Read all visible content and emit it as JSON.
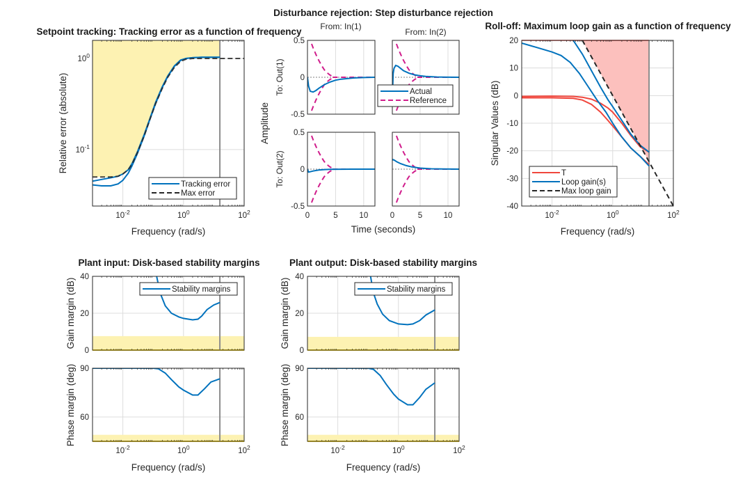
{
  "figure_title": "Disturbance rejection: Step disturbance rejection",
  "colors": {
    "blue": "#0072BD",
    "red": "#F0463C",
    "magenta": "#D01C8B",
    "dark": "#262626",
    "yellow_fill": "#FDF2B2",
    "yellow_edge": "#7F6A00",
    "red_fill": "#FCC0BD",
    "grid": "#DCDCDC",
    "vline": "#8C8C8C"
  },
  "chart_data": [
    {
      "id": "tracking",
      "type": "line",
      "title": "Setpoint tracking: Tracking error as a function of frequency",
      "xlabel": "Frequency (rad/s)",
      "ylabel": "Relative error (absolute)",
      "xscale": "log",
      "yscale": "log",
      "xlim": [
        0.001,
        100
      ],
      "ylim": [
        0.024,
        1.58
      ],
      "xticks": [
        {
          "v": 0.01,
          "base": "10",
          "exp": "-2"
        },
        {
          "v": 1,
          "base": "10",
          "exp": "0"
        },
        {
          "v": 100,
          "base": "10",
          "exp": "2"
        }
      ],
      "yticks": [
        {
          "v": 0.1,
          "base": "10",
          "exp": "-1"
        },
        {
          "v": 1,
          "base": "10",
          "exp": "0"
        }
      ],
      "grid": true,
      "shaded_region": {
        "description": "region above max error",
        "x_to": 15.8
      },
      "vline_x": 15.8,
      "series": [
        {
          "name": "Tracking error",
          "style": "solid",
          "color": "blue",
          "x": [
            0.001,
            0.002,
            0.004,
            0.007,
            0.01,
            0.015,
            0.02,
            0.03,
            0.05,
            0.08,
            0.12,
            0.2,
            0.3,
            0.5,
            0.8,
            1.2,
            2,
            4,
            8,
            15.8
          ],
          "y": [
            0.041,
            0.04,
            0.04,
            0.042,
            0.046,
            0.055,
            0.066,
            0.09,
            0.14,
            0.22,
            0.32,
            0.48,
            0.63,
            0.82,
            0.95,
            1.0,
            1.02,
            1.03,
            1.03,
            1.03
          ]
        },
        {
          "name": "Tracking error (2)",
          "style": "solid",
          "color": "blue",
          "legend": false,
          "x": [
            0.001,
            0.002,
            0.004,
            0.007,
            0.01,
            0.015,
            0.02,
            0.03,
            0.05,
            0.08,
            0.12,
            0.2,
            0.3,
            0.5,
            0.8,
            1.2,
            2,
            4,
            8,
            15.8
          ],
          "y": [
            0.045,
            0.047,
            0.049,
            0.051,
            0.054,
            0.06,
            0.07,
            0.094,
            0.145,
            0.225,
            0.33,
            0.49,
            0.64,
            0.83,
            0.96,
            1.0,
            1.02,
            1.03,
            1.03,
            1.03
          ]
        },
        {
          "name": "Max error",
          "style": "dashed",
          "color": "dark",
          "x": [
            0.001,
            0.004,
            0.007,
            0.01,
            0.015,
            0.02,
            0.03,
            0.05,
            0.08,
            0.12,
            0.2,
            0.3,
            0.5,
            0.8,
            1.2,
            2,
            4,
            10,
            100
          ],
          "y": [
            0.05,
            0.05,
            0.051,
            0.054,
            0.06,
            0.069,
            0.092,
            0.14,
            0.22,
            0.32,
            0.47,
            0.62,
            0.8,
            0.93,
            0.98,
            1.0,
            1.0,
            1.0,
            1.0
          ]
        }
      ],
      "legend": {
        "position": "bottom-right",
        "entries": [
          "Tracking error",
          "Max error"
        ]
      }
    },
    {
      "id": "disturbance",
      "type": "line",
      "title": "Disturbance rejection: Step disturbance rejection",
      "xlabel": "Time (seconds)",
      "ylabel": "Amplitude",
      "xlim": [
        0,
        12
      ],
      "ylim": [
        -0.5,
        0.5
      ],
      "xticks": [
        0,
        5,
        10
      ],
      "yticks": [
        -0.5,
        0,
        0.5
      ],
      "col_titles": [
        "From: In(1)",
        "From: In(2)"
      ],
      "row_titles": [
        "To: Out(1)",
        "To: Out(2)"
      ],
      "legend": {
        "position": "between panels",
        "entries": [
          "Actual",
          "Reference"
        ]
      },
      "reference_envelope": {
        "t": [
          0,
          0.5,
          1,
          1.5,
          2,
          2.5,
          3,
          3.5,
          4,
          4.5
        ],
        "upper": [
          0.9,
          0.5,
          0.4,
          0.31,
          0.23,
          0.16,
          0.1,
          0.06,
          0.03,
          0.01
        ]
      },
      "panels": [
        {
          "row": 0,
          "col": 0,
          "actual": {
            "t": [
              0,
              0.2,
              0.5,
              1,
              1.5,
              2,
              3,
              4,
              5,
              6,
              8,
              10,
              12
            ],
            "y": [
              0,
              -0.12,
              -0.19,
              -0.2,
              -0.18,
              -0.15,
              -0.1,
              -0.065,
              -0.04,
              -0.025,
              -0.01,
              -0.004,
              0
            ]
          }
        },
        {
          "row": 0,
          "col": 1,
          "actual": {
            "t": [
              0,
              0.15,
              0.3,
              0.6,
              1,
              1.5,
              2,
              3,
              4,
              5,
              6,
              8,
              10,
              12
            ],
            "y": [
              -0.3,
              0.05,
              0.12,
              0.16,
              0.15,
              0.12,
              0.09,
              0.055,
              0.033,
              0.02,
              0.012,
              0.004,
              0.001,
              0
            ]
          }
        },
        {
          "row": 1,
          "col": 0,
          "actual": {
            "t": [
              0,
              0.2,
              0.5,
              1,
              2,
              3,
              4,
              6,
              8,
              12
            ],
            "y": [
              0,
              -0.04,
              -0.035,
              -0.025,
              -0.012,
              -0.006,
              -0.003,
              -0.001,
              0,
              0
            ]
          }
        },
        {
          "row": 1,
          "col": 1,
          "actual": {
            "t": [
              0,
              0.1,
              0.4,
              0.8,
              1.5,
              2.5,
              3.5,
              5,
              7,
              9,
              12
            ],
            "y": [
              0.12,
              0.13,
              0.12,
              0.1,
              0.075,
              0.048,
              0.03,
              0.014,
              0.005,
              0.002,
              0
            ]
          }
        }
      ]
    },
    {
      "id": "rolloff",
      "type": "line",
      "title": "Roll-off: Maximum loop gain as a function of frequency",
      "xlabel": "Frequency (rad/s)",
      "ylabel": "Singular Values (dB)",
      "xscale": "log",
      "xlim": [
        0.001,
        100
      ],
      "ylim": [
        -40,
        20
      ],
      "xticks": [
        {
          "v": 0.01,
          "base": "10",
          "exp": "-2"
        },
        {
          "v": 1,
          "base": "10",
          "exp": "0"
        },
        {
          "v": 100,
          "base": "10",
          "exp": "2"
        }
      ],
      "yticks": [
        -40,
        -30,
        -20,
        -10,
        0,
        10,
        20
      ],
      "grid": true,
      "vline_x": 15.8,
      "series": [
        {
          "name": "T",
          "color": "red",
          "style": "solid",
          "x": [
            0.001,
            0.01,
            0.05,
            0.1,
            0.2,
            0.4,
            0.7,
            1,
            2,
            4,
            8,
            15.8
          ],
          "y": [
            -0.3,
            -0.2,
            -0.3,
            -0.6,
            -1.3,
            -2.8,
            -4.5,
            -6,
            -10,
            -14.5,
            -18.5,
            -20.5
          ]
        },
        {
          "name": "T (2)",
          "color": "red",
          "style": "solid",
          "legend": false,
          "x": [
            0.001,
            0.01,
            0.05,
            0.1,
            0.2,
            0.4,
            0.7,
            1,
            2,
            4,
            8,
            15.8
          ],
          "y": [
            -0.8,
            -0.8,
            -1,
            -1.6,
            -3.2,
            -6,
            -9,
            -11,
            -15,
            -19,
            -22,
            -25
          ]
        },
        {
          "name": "Loop gain(s)",
          "color": "blue",
          "style": "solid",
          "x": [
            0.001,
            0.003,
            0.01,
            0.02,
            0.04,
            0.08,
            0.15,
            0.3,
            0.6,
            1,
            2,
            4,
            8,
            15.8
          ],
          "y": [
            19,
            17.5,
            15.8,
            14.5,
            12,
            8,
            3.5,
            -1.5,
            -6,
            -10,
            -15,
            -19,
            -22,
            -25.5
          ]
        },
        {
          "name": "Loop gain(s) (2)",
          "color": "blue",
          "style": "solid",
          "legend": false,
          "x": [
            0.05,
            0.1,
            0.2,
            0.4,
            0.7,
            1,
            2,
            4,
            8,
            15.8
          ],
          "y": [
            20,
            15,
            9,
            3,
            -1.5,
            -4,
            -9,
            -14,
            -18,
            -20.5
          ]
        },
        {
          "name": "Max loop gain",
          "color": "dark",
          "style": "dashed",
          "x": [
            0.1,
            100
          ],
          "y": [
            20,
            -40
          ]
        }
      ],
      "legend": {
        "position": "bottom-left",
        "entries": [
          "T",
          "Loop gain(s)",
          "Max loop gain"
        ]
      }
    },
    {
      "id": "margins_input",
      "type": "line",
      "title": "Plant input: Disk-based stability margins",
      "xlabel": "Frequency (rad/s)",
      "xscale": "log",
      "xlim": [
        0.001,
        100
      ],
      "xticks": [
        {
          "v": 0.01,
          "base": "10",
          "exp": "-2"
        },
        {
          "v": 1,
          "base": "10",
          "exp": "0"
        },
        {
          "v": 100,
          "base": "10",
          "exp": "2"
        }
      ],
      "vline_x": 15.8,
      "gain": {
        "ylabel": "Gain margin (dB)",
        "ylim": [
          0,
          40
        ],
        "yticks": [
          0,
          20,
          40
        ],
        "shade_below": 7.6,
        "x": [
          0.13,
          0.17,
          0.25,
          0.4,
          0.7,
          1,
          2,
          3,
          4,
          6,
          10,
          15.8
        ],
        "y": [
          40,
          31,
          24,
          20,
          18,
          17.2,
          16.4,
          16.8,
          18.5,
          22,
          24.5,
          25.8
        ]
      },
      "phase": {
        "ylabel": "Phase margin (deg)",
        "ylim": [
          45,
          90
        ],
        "yticks": [
          60,
          90
        ],
        "shade_below": 49,
        "x": [
          0.001,
          0.1,
          0.15,
          0.25,
          0.4,
          0.7,
          1,
          2,
          3,
          5,
          8,
          15.8
        ],
        "y": [
          90,
          90,
          89.6,
          87,
          83,
          78.5,
          76.5,
          73.5,
          73.5,
          77.5,
          81.5,
          83.5
        ]
      },
      "legend": {
        "position": "top-right",
        "entries": [
          "Stability margins"
        ]
      }
    },
    {
      "id": "margins_output",
      "type": "line",
      "title": "Plant output: Disk-based stability margins",
      "xlabel": "Frequency (rad/s)",
      "xscale": "log",
      "xlim": [
        0.001,
        100
      ],
      "xticks": [
        {
          "v": 0.01,
          "base": "10",
          "exp": "-2"
        },
        {
          "v": 1,
          "base": "10",
          "exp": "0"
        },
        {
          "v": 100,
          "base": "10",
          "exp": "2"
        }
      ],
      "vline_x": 15.8,
      "gain": {
        "ylabel": "Gain margin (dB)",
        "ylim": [
          0,
          40
        ],
        "yticks": [
          0,
          20,
          40
        ],
        "shade_below": 7.2,
        "x": [
          0.12,
          0.15,
          0.2,
          0.3,
          0.5,
          1,
          2,
          3,
          5,
          8,
          15.8
        ],
        "y": [
          40,
          31,
          25,
          19.5,
          16,
          14.2,
          13.8,
          14.2,
          16,
          19,
          21.8
        ]
      },
      "phase": {
        "ylabel": "Phase margin (deg)",
        "ylim": [
          45,
          90
        ],
        "yticks": [
          60,
          90
        ],
        "shade_below": 49,
        "x": [
          0.001,
          0.1,
          0.15,
          0.25,
          0.4,
          0.7,
          1,
          2,
          3,
          5,
          8,
          15.8
        ],
        "y": [
          90,
          90,
          89.3,
          85.5,
          80,
          74,
          71,
          67.5,
          67.5,
          72,
          77,
          81
        ]
      },
      "legend": {
        "position": "top-right",
        "entries": [
          "Stability margins"
        ]
      }
    }
  ]
}
